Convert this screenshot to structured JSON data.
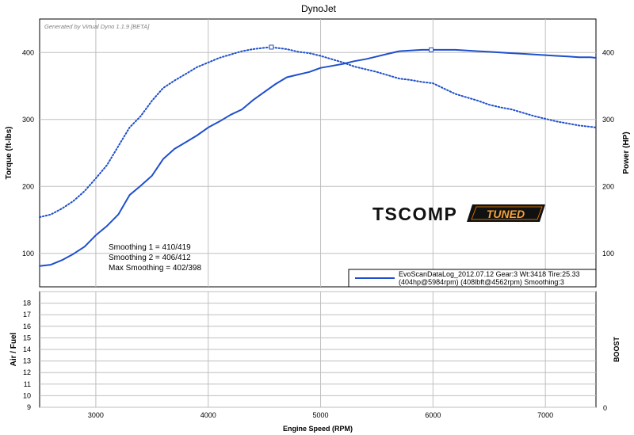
{
  "chart_data": [
    {
      "type": "line",
      "title": "DynoJet",
      "watermark": "Generated by Virtual Dyno 1.1.9 [BETA]",
      "xlabel": "Engine Speed (RPM)",
      "ylabel": "Torque (ft-lbs)",
      "y2label": "Power (HP)",
      "xlim": [
        2500,
        7450
      ],
      "ylim": [
        50,
        450
      ],
      "y2lim": [
        50,
        450
      ],
      "x_ticks": [
        3000,
        4000,
        5000,
        6000,
        7000
      ],
      "y_ticks": [
        100,
        200,
        300,
        400
      ],
      "y2_ticks": [
        100,
        200,
        300,
        400
      ],
      "grid": true,
      "series": [
        {
          "name": "Power",
          "axis": "y2",
          "style": "solid",
          "peak_marker": [
            5984,
            404
          ],
          "x": [
            2500,
            2600,
            2700,
            2800,
            2900,
            3000,
            3100,
            3200,
            3300,
            3400,
            3500,
            3600,
            3700,
            3800,
            3900,
            4000,
            4100,
            4200,
            4300,
            4400,
            4500,
            4600,
            4700,
            4800,
            4900,
            5000,
            5100,
            5200,
            5300,
            5400,
            5500,
            5600,
            5700,
            5800,
            5900,
            6000,
            6100,
            6200,
            6300,
            6400,
            6500,
            6600,
            6700,
            6800,
            6900,
            7000,
            7100,
            7200,
            7300,
            7400,
            7450
          ],
          "values": [
            81,
            83,
            90,
            99,
            110,
            127,
            141,
            158,
            187,
            201,
            216,
            241,
            256,
            266,
            276,
            288,
            297,
            307,
            315,
            329,
            341,
            353,
            363,
            367,
            371,
            377,
            380,
            383,
            387,
            390,
            394,
            398,
            402,
            403,
            404,
            404,
            404,
            404,
            403,
            402,
            401,
            400,
            399,
            398,
            397,
            396,
            395,
            394,
            393,
            393,
            392
          ]
        },
        {
          "name": "Torque",
          "axis": "y",
          "style": "dotted",
          "peak_marker": [
            4562,
            408
          ],
          "x": [
            2500,
            2600,
            2700,
            2800,
            2900,
            3000,
            3100,
            3200,
            3300,
            3400,
            3500,
            3600,
            3700,
            3800,
            3900,
            4000,
            4100,
            4200,
            4300,
            4400,
            4500,
            4562,
            4600,
            4700,
            4800,
            4900,
            5000,
            5100,
            5200,
            5300,
            5400,
            5500,
            5600,
            5700,
            5800,
            5900,
            6000,
            6100,
            6200,
            6300,
            6400,
            6500,
            6600,
            6700,
            6800,
            6900,
            7000,
            7100,
            7200,
            7300,
            7400,
            7450
          ],
          "values": [
            154,
            158,
            167,
            178,
            193,
            212,
            232,
            260,
            288,
            305,
            328,
            347,
            358,
            368,
            378,
            385,
            392,
            397,
            402,
            405,
            407,
            408,
            407,
            405,
            401,
            399,
            395,
            390,
            385,
            379,
            375,
            371,
            366,
            361,
            359,
            356,
            354,
            346,
            338,
            333,
            328,
            322,
            318,
            315,
            310,
            305,
            301,
            297,
            294,
            291,
            289,
            288
          ]
        }
      ],
      "legend_lines": [
        "EvoScanDataLog_2012.07.12 Gear:3 Wt:3418 Tire:25.33",
        "(404hp@5984rpm) (408lbft@4562rpm) Smoothing:3"
      ],
      "legend_placement": "bottom-right",
      "annotations": [
        "Smoothing 1 = 410/419",
        "Smoothing 2 = 406/412",
        "Max Smoothing = 402/398"
      ],
      "colors": {
        "line": "#1f4fcc",
        "grid": "#bfbfbf",
        "axis": "#000000"
      }
    },
    {
      "type": "line",
      "xlabel": "Engine Speed (RPM)",
      "ylabel": "Air / Fuel",
      "y2label": "BOOST",
      "xlim": [
        2500,
        7450
      ],
      "ylim": [
        9,
        19
      ],
      "y_ticks": [
        9,
        10,
        11,
        12,
        13,
        14,
        15,
        16,
        17,
        18
      ],
      "y2_ticks": [
        0
      ],
      "grid": true,
      "series": []
    }
  ],
  "logo": {
    "text": "TSCOMP",
    "badge": "TUNED"
  }
}
